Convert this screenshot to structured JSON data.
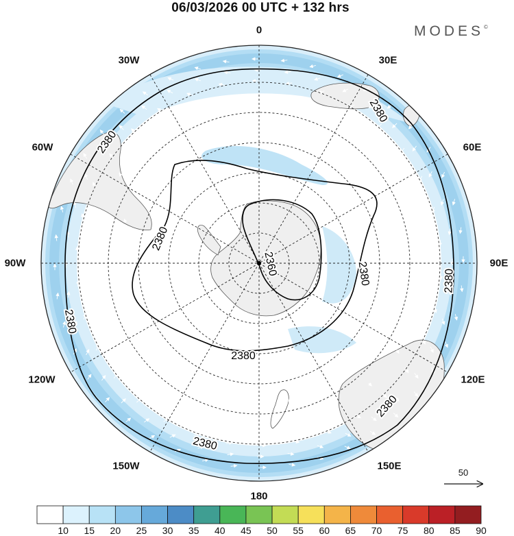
{
  "title": "06/03/2026  00 UTC  + 132 hrs",
  "brand": "MODES",
  "brand_mark": "©",
  "longitude_labels": {
    "n0": "0",
    "n30e": "30E",
    "n60e": "60E",
    "n90e": "90E",
    "n120e": "120E",
    "n150e": "150E",
    "n180": "180",
    "n150w": "150W",
    "n120w": "120W",
    "n90w": "90W",
    "n60w": "60W",
    "n30w": "30W"
  },
  "contours": {
    "outer_label": "2380",
    "inner_label": "2380",
    "center_label": "2360"
  },
  "vector_reference": {
    "value": "50"
  },
  "colorbar": {
    "labels": [
      "10",
      "15",
      "20",
      "25",
      "30",
      "35",
      "40",
      "45",
      "50",
      "55",
      "60",
      "65",
      "70",
      "75",
      "80",
      "85",
      "90"
    ],
    "colors": [
      "#ffffff",
      "#dcf2fd",
      "#b8e2f6",
      "#8dc6ea",
      "#66a9da",
      "#4c8cc6",
      "#3f9e92",
      "#49b657",
      "#79c454",
      "#c3dc55",
      "#f6e05a",
      "#f4b449",
      "#ef8a3a",
      "#e9602f",
      "#d93a2a",
      "#bb2026",
      "#931d20"
    ]
  },
  "map_colors": {
    "land": "#efefef",
    "wind_15": "#d9eefa",
    "wind_20": "#a9d8f2",
    "wind_25": "#8cc7ea",
    "graticule": "#222222",
    "contour": "#000000"
  }
}
